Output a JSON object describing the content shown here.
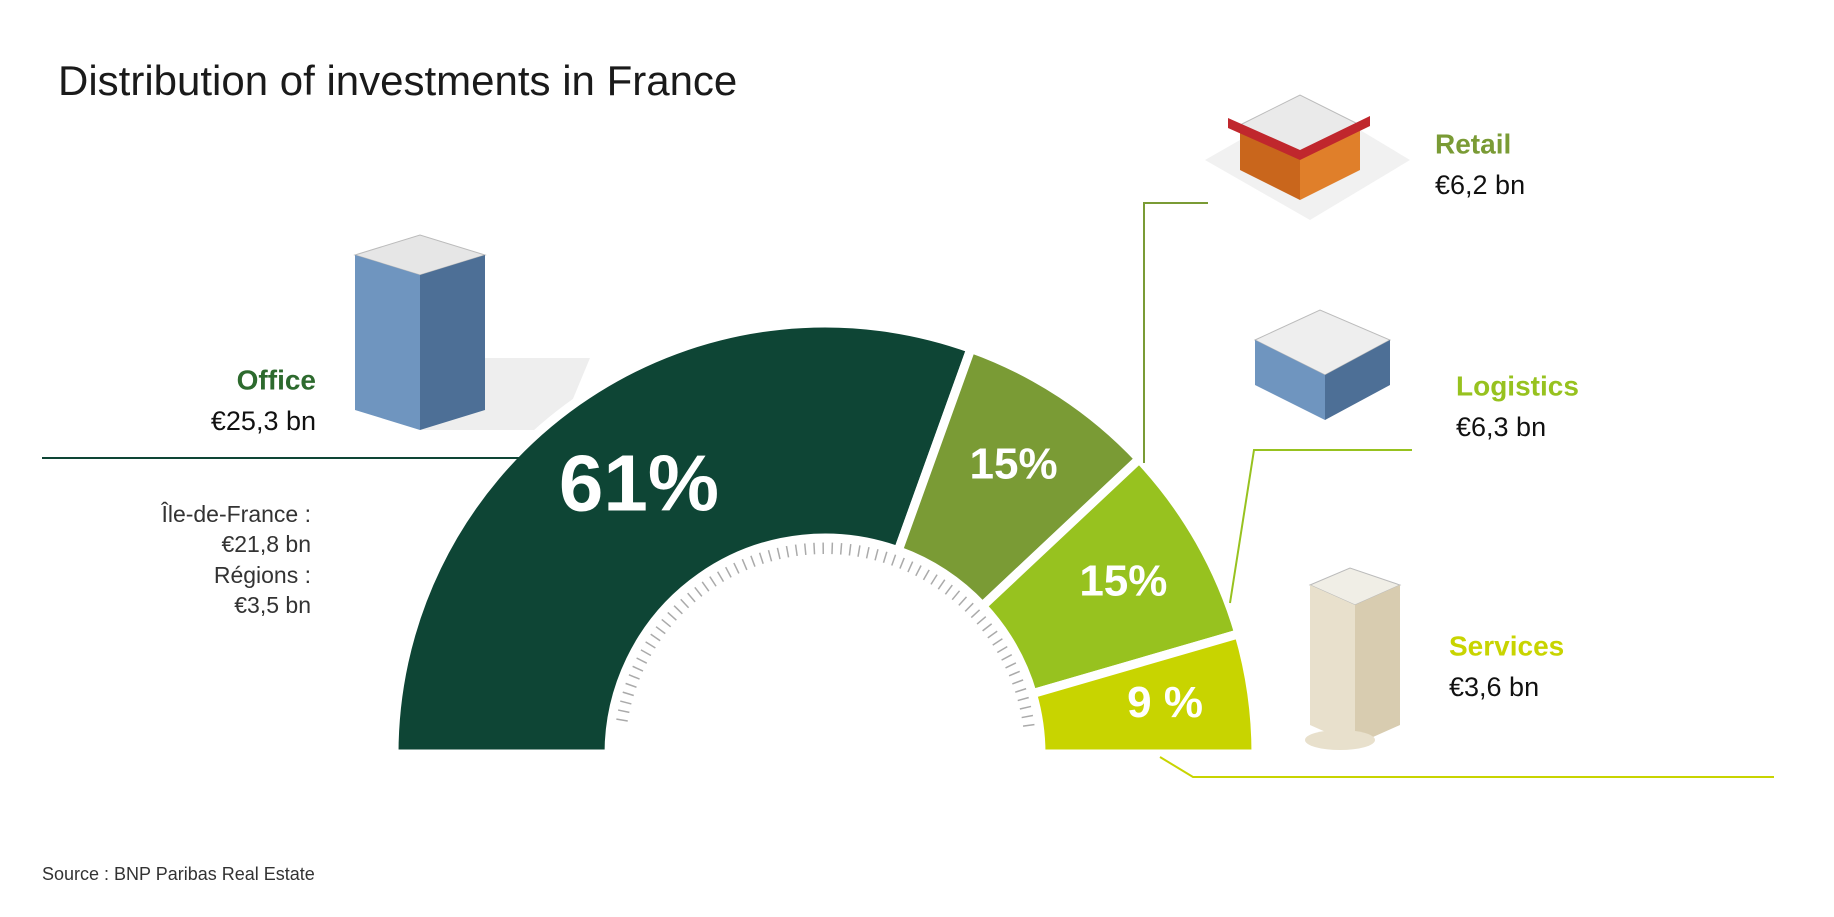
{
  "chart_data": {
    "type": "half-donut",
    "title": "Distribution of investments in France",
    "categories": [
      "Office",
      "Retail",
      "Logistics",
      "Services"
    ],
    "values": [
      61,
      15,
      15,
      9
    ],
    "value_labels": [
      "61%",
      "15%",
      "15%",
      "9 %"
    ],
    "amounts": [
      25.3,
      6.2,
      6.3,
      3.6
    ],
    "amount_labels": [
      "€25,3 bn",
      "€6,2 bn",
      "€6,3 bn",
      "€3,6 bn"
    ],
    "colors": [
      "#0e4535",
      "#7a9b35",
      "#97c21f",
      "#c8d400"
    ],
    "breakdown": [
      {
        "name": "Île-de-France :",
        "value": 21.8,
        "label": "€21,8 bn"
      },
      {
        "name": "Régions :",
        "value": 3.5,
        "label": "€3,5 bn"
      }
    ],
    "source": "Source : BNP Paribas Real Estate"
  }
}
